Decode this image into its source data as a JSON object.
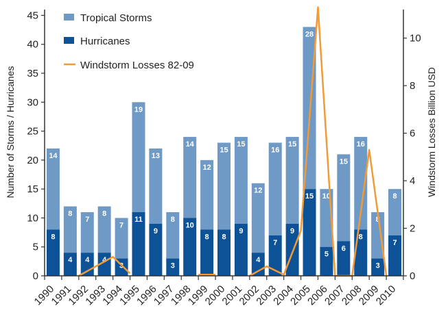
{
  "chart_data": {
    "type": "bar",
    "stacked": true,
    "categories": [
      "1990",
      "1991",
      "1992",
      "1993",
      "1994",
      "1995",
      "1996",
      "1997",
      "1998",
      "1999",
      "2000",
      "2001",
      "2002",
      "2003",
      "2004",
      "2005",
      "2006",
      "2007",
      "2008",
      "2009",
      "2010"
    ],
    "series": [
      {
        "name": "Hurricanes",
        "axis": "left",
        "color": "#0d5296",
        "values": [
          8,
          4,
          4,
          4,
          3,
          11,
          9,
          3,
          10,
          8,
          8,
          9,
          4,
          7,
          9,
          15,
          5,
          6,
          8,
          3,
          7
        ]
      },
      {
        "name": "Tropical Storms",
        "axis": "left",
        "color": "#6f9ac5",
        "values": [
          14,
          8,
          7,
          8,
          7,
          19,
          13,
          8,
          14,
          12,
          15,
          15,
          12,
          16,
          15,
          28,
          10,
          15,
          16,
          8,
          8
        ]
      },
      {
        "name": "Windstorm Losses 82-09",
        "type": "line",
        "axis": "right",
        "color": "#f29a38",
        "x": [
          "1991",
          "1992",
          "1993",
          "1994",
          "1998",
          "1999",
          "2001",
          "2002",
          "2003",
          "2004",
          "2005",
          "2006",
          "2007",
          "2008",
          "2009"
        ],
        "values": [
          0.0,
          0.4,
          0.8,
          0.1,
          0.05,
          0.05,
          0.0,
          0.4,
          0.05,
          1.9,
          11.3,
          0.0,
          0.0,
          5.3,
          0.0
        ]
      }
    ],
    "ylabel": "Number of Storms / Hurricanes",
    "ylabel_right": "Windstorm Losses Billion USD",
    "ylim": [
      0,
      46
    ],
    "ylim_right": [
      0,
      11.2
    ],
    "yticks": [
      "0",
      "5",
      "10",
      "15",
      "20",
      "25",
      "30",
      "35",
      "40",
      "45"
    ],
    "yticks_right": [
      "0",
      "2",
      "4",
      "6",
      "8",
      "10"
    ],
    "legend_position": "top-left",
    "grid": false
  }
}
